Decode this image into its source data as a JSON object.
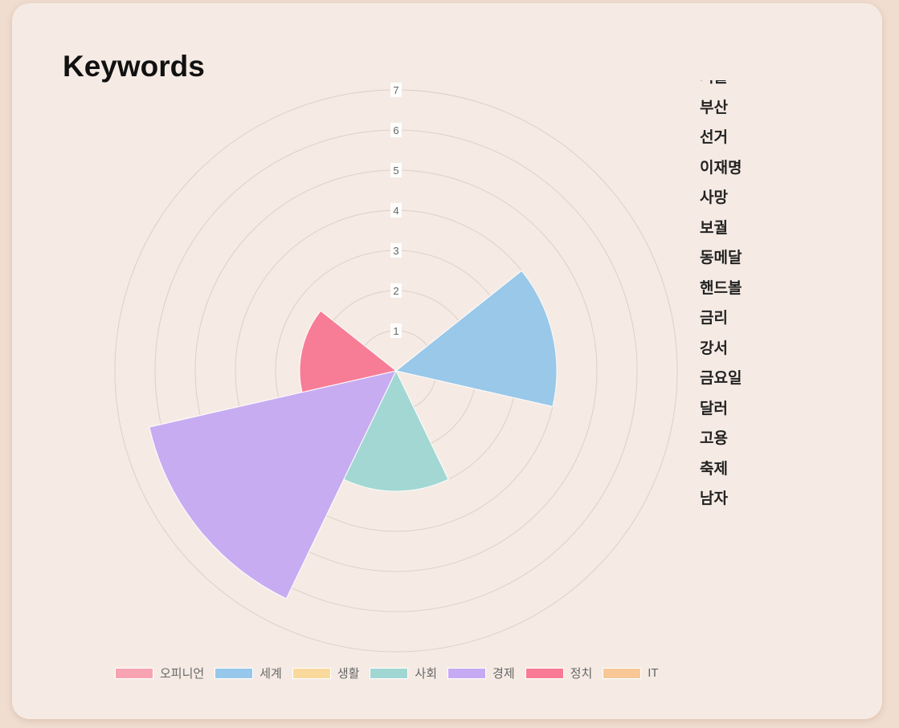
{
  "title": "Keywords",
  "keywords": [
    "서울",
    "부산",
    "선거",
    "이재명",
    "사망",
    "보궐",
    "동메달",
    "핸드볼",
    "금리",
    "강서",
    "금요일",
    "달러",
    "고용",
    "축제",
    "남자"
  ],
  "chart_data": {
    "type": "polarArea",
    "categories": [
      "오피니언",
      "세계",
      "생활",
      "사회",
      "경제",
      "정치",
      "IT"
    ],
    "values": [
      0,
      4,
      0,
      3,
      6.3,
      2.4,
      0
    ],
    "colors": [
      "#f7a3b2",
      "#97c7ea",
      "#f9d99c",
      "#a1d7d3",
      "#c6aaf3",
      "#f87a94",
      "#f8c795"
    ],
    "rlim": [
      0,
      7
    ],
    "ticks": [
      "1",
      "2",
      "3",
      "4",
      "5",
      "6",
      "7"
    ],
    "legend_position": "bottom",
    "grid": true
  }
}
